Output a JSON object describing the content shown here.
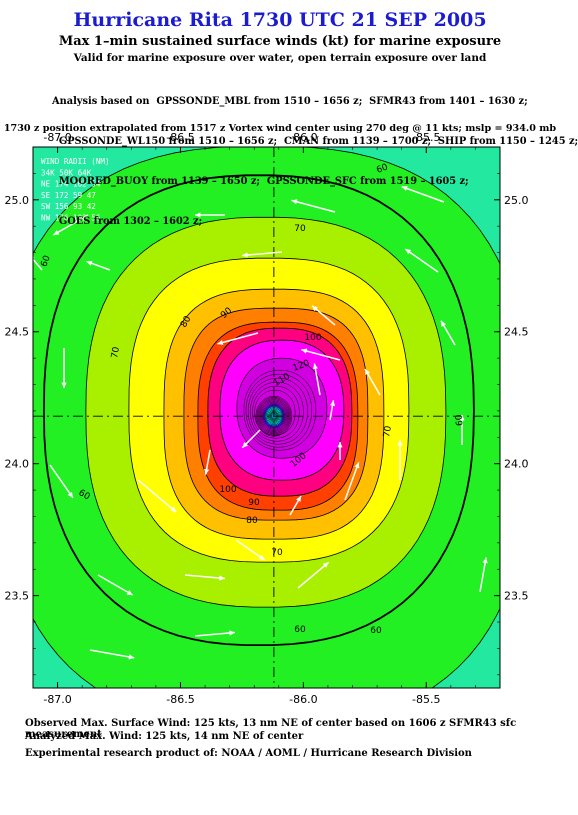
{
  "title": "Hurricane Rita 1730 UTC 21 SEP 2005",
  "subtitle": "Max 1–min sustained surface winds (kt) for marine exposure",
  "subtitle2": "Valid for marine exposure over water, open terrain exposure over land",
  "analysis_lines": [
    "Analysis based on  GPSSONDE_MBL from 1510 – 1656 z;  SFMR43 from 1401 – 1630 z;",
    "  GPSSONDE_WL150 from 1510 – 1656 z;  CMAN from 1139 – 1700 z;  SHIP from 1150 – 1245 z;",
    "  MOORED_BUOY from 1139 – 1650 z;  GPSSONDE_SFC from 1519 – 1605 z;",
    "  GOES from 1302 – 1602 z;"
  ],
  "position_note": "1730 z position extrapolated from 1517 z Vortex wind center using 270 deg @ 11 kts; mslp = 934.0 mb",
  "footer": {
    "observed": "Observed Max. Surface Wind: 125 kts, 13 nm NE of center based on 1606 z SFMR43 sfc measurement",
    "analyzed": "Analyzed Max. Wind: 125 kts, 14 nm NE of center",
    "product": "Experimental research product of:  NOAA / AOML / Hurricane Research Division"
  },
  "map": {
    "lon_ticks": [
      "-87.0",
      "-86.5",
      "-86.0",
      "-85.5"
    ],
    "lat_ticks": [
      "25.0",
      "24.5",
      "24.0",
      "23.5"
    ],
    "lon_range": [
      -87.1,
      -85.2
    ],
    "lat_range": [
      23.15,
      25.2
    ],
    "center": {
      "lon": -86.12,
      "lat": 24.18
    },
    "wind_radii": {
      "header": "WIND RADII (NM)",
      "columns": "    34K  50K  64K",
      "rows": [
        "NE  174  102   54",
        "SE  172   59   47",
        "SW  156   93   42",
        "NW  176  102   56"
      ]
    },
    "contour_labels": [
      "60",
      "60",
      "60",
      "60",
      "60",
      "70",
      "70",
      "70",
      "70",
      "80",
      "80",
      "90",
      "90",
      "100",
      "100",
      "100",
      "110",
      "120"
    ],
    "colors": {
      "below_60": "#22e8a0",
      "c60": "#22f022",
      "c70": "#a8f000",
      "c80": "#ffff00",
      "c90": "#ffc000",
      "c100": "#ff8000",
      "c110": "#ff4000",
      "c115": "#ff0080",
      "c120": "#ff00ff",
      "c125": "#d000e0"
    }
  }
}
